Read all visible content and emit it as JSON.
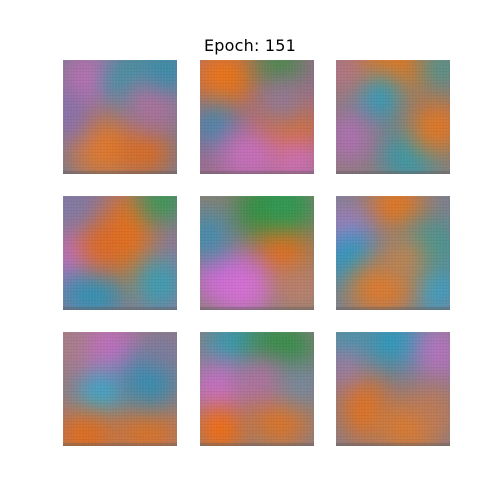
{
  "figure": {
    "title": "Epoch: 151"
  },
  "tiles": [
    {
      "name": "sample-1",
      "base": "#7b7a92",
      "blobs": [
        {
          "c": "#c26fb3"
        },
        {
          "c": "#2f9aa6"
        },
        {
          "c": "#e07a2e"
        },
        {
          "c": "#e06a1a"
        },
        {
          "c": "#b46f9a"
        },
        {
          "c": "#8a6fb0"
        },
        {
          "c": "#2b8fae"
        }
      ]
    },
    {
      "name": "sample-2",
      "base": "#9a6e8e",
      "blobs": [
        {
          "c": "#e8741a"
        },
        {
          "c": "#3a8f3a"
        },
        {
          "c": "#e0701e"
        },
        {
          "c": "#2b8fb4"
        },
        {
          "c": "#c96fbf"
        },
        {
          "c": "#d36fc4"
        },
        {
          "c": "#8a7aa0"
        }
      ]
    },
    {
      "name": "sample-3",
      "base": "#8c7c7a",
      "blobs": [
        {
          "c": "#e8761c"
        },
        {
          "c": "#1fa3c9"
        },
        {
          "c": "#2c9db1"
        },
        {
          "c": "#e8761c"
        },
        {
          "c": "#b06fb6"
        },
        {
          "c": "#3a9b94"
        },
        {
          "c": "#b8738a"
        }
      ]
    },
    {
      "name": "sample-4",
      "base": "#8f7898",
      "blobs": [
        {
          "c": "#e8721c"
        },
        {
          "c": "#2b9c4a"
        },
        {
          "c": "#c56ed0"
        },
        {
          "c": "#2a94b6"
        },
        {
          "c": "#e06a1c"
        },
        {
          "c": "#7d7aa7"
        },
        {
          "c": "#34a0b4"
        }
      ]
    },
    {
      "name": "sample-5",
      "base": "#8a8074",
      "blobs": [
        {
          "c": "#2e8f3e"
        },
        {
          "c": "#e46f18"
        },
        {
          "c": "#cf6ad6"
        },
        {
          "c": "#d770d6"
        },
        {
          "c": "#3b8db6"
        },
        {
          "c": "#c0806c"
        },
        {
          "c": "#2f9a58"
        }
      ]
    },
    {
      "name": "sample-6",
      "base": "#7c8090",
      "blobs": [
        {
          "c": "#e8761c"
        },
        {
          "c": "#b07ac0"
        },
        {
          "c": "#1e9cc8"
        },
        {
          "c": "#2fa7d2"
        },
        {
          "c": "#e07a2a"
        },
        {
          "c": "#3b9a92"
        },
        {
          "c": "#c6834a"
        }
      ]
    },
    {
      "name": "sample-7",
      "base": "#9a7a7e",
      "blobs": [
        {
          "c": "#c06fc0"
        },
        {
          "c": "#2bb1dc"
        },
        {
          "c": "#e56c16"
        },
        {
          "c": "#e0721e"
        },
        {
          "c": "#2b8fb4"
        },
        {
          "c": "#a97f88"
        },
        {
          "c": "#7c7a9f"
        }
      ]
    },
    {
      "name": "sample-8",
      "base": "#8b7e84",
      "blobs": [
        {
          "c": "#2aa0b8"
        },
        {
          "c": "#2e9042"
        },
        {
          "c": "#c86fc8"
        },
        {
          "c": "#ff6a00"
        },
        {
          "c": "#e07422"
        },
        {
          "c": "#b96fa7"
        },
        {
          "c": "#6c8ca8"
        }
      ]
    },
    {
      "name": "sample-9",
      "base": "#8a7c88",
      "blobs": [
        {
          "c": "#e4721c"
        },
        {
          "c": "#2b9bbd"
        },
        {
          "c": "#b872c0"
        },
        {
          "c": "#e07a28"
        },
        {
          "c": "#2aa0b8"
        },
        {
          "c": "#a779a8"
        },
        {
          "c": "#c07a54"
        }
      ]
    }
  ]
}
